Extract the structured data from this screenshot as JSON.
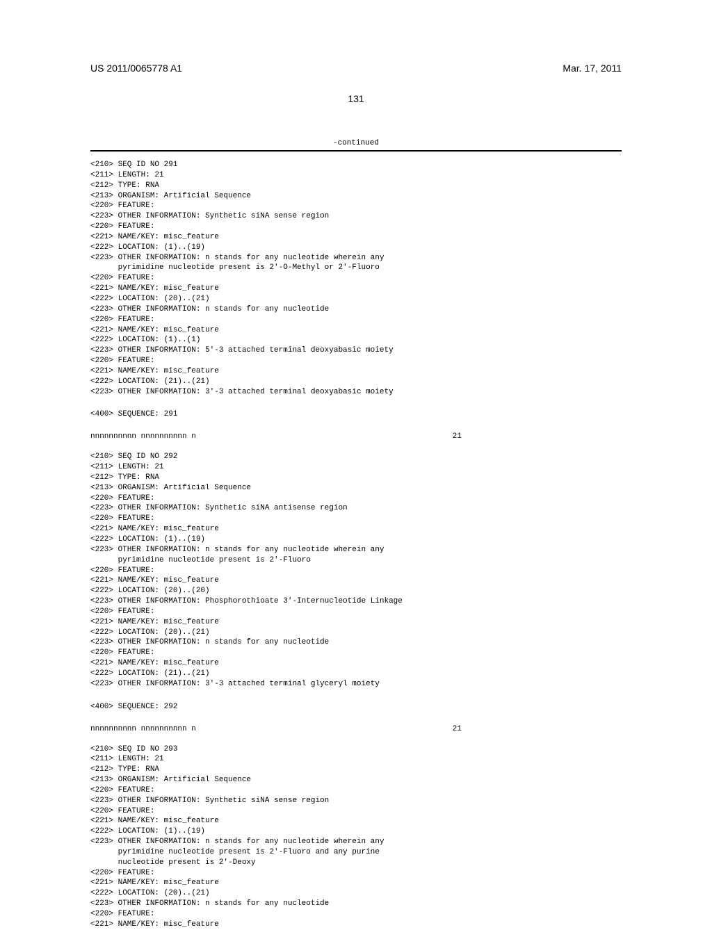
{
  "header": {
    "docNumber": "US 2011/0065778 A1",
    "date": "Mar. 17, 2011"
  },
  "pageNumber": "131",
  "continuedLabel": "-continued",
  "seq291": {
    "lines": [
      "<210> SEQ ID NO 291",
      "<211> LENGTH: 21",
      "<212> TYPE: RNA",
      "<213> ORGANISM: Artificial Sequence",
      "<220> FEATURE:",
      "<223> OTHER INFORMATION: Synthetic siNA sense region",
      "<220> FEATURE:",
      "<221> NAME/KEY: misc_feature",
      "<222> LOCATION: (1)..(19)",
      "<223> OTHER INFORMATION: n stands for any nucleotide wherein any",
      "      pyrimidine nucleotide present is 2'-O-Methyl or 2'-Fluoro",
      "<220> FEATURE:",
      "<221> NAME/KEY: misc_feature",
      "<222> LOCATION: (20)..(21)",
      "<223> OTHER INFORMATION: n stands for any nucleotide",
      "<220> FEATURE:",
      "<221> NAME/KEY: misc_feature",
      "<222> LOCATION: (1)..(1)",
      "<223> OTHER INFORMATION: 5'-3 attached terminal deoxyabasic moiety",
      "<220> FEATURE:",
      "<221> NAME/KEY: misc_feature",
      "<222> LOCATION: (21)..(21)",
      "<223> OTHER INFORMATION: 3'-3 attached terminal deoxyabasic moiety"
    ],
    "sequenceLabel": "<400> SEQUENCE: 291",
    "sequence": "nnnnnnnnnn nnnnnnnnnn n",
    "seqNumber": "21"
  },
  "seq292": {
    "lines": [
      "<210> SEQ ID NO 292",
      "<211> LENGTH: 21",
      "<212> TYPE: RNA",
      "<213> ORGANISM: Artificial Sequence",
      "<220> FEATURE:",
      "<223> OTHER INFORMATION: Synthetic siNA antisense region",
      "<220> FEATURE:",
      "<221> NAME/KEY: misc_feature",
      "<222> LOCATION: (1)..(19)",
      "<223> OTHER INFORMATION: n stands for any nucleotide wherein any",
      "      pyrimidine nucleotide present is 2'-Fluoro",
      "<220> FEATURE:",
      "<221> NAME/KEY: misc_feature",
      "<222> LOCATION: (20)..(20)",
      "<223> OTHER INFORMATION: Phosphorothioate 3'-Internucleotide Linkage",
      "<220> FEATURE:",
      "<221> NAME/KEY: misc_feature",
      "<222> LOCATION: (20)..(21)",
      "<223> OTHER INFORMATION: n stands for any nucleotide",
      "<220> FEATURE:",
      "<221> NAME/KEY: misc_feature",
      "<222> LOCATION: (21)..(21)",
      "<223> OTHER INFORMATION: 3'-3 attached terminal glyceryl moiety"
    ],
    "sequenceLabel": "<400> SEQUENCE: 292",
    "sequence": "nnnnnnnnnn nnnnnnnnnn n",
    "seqNumber": "21"
  },
  "seq293": {
    "lines": [
      "<210> SEQ ID NO 293",
      "<211> LENGTH: 21",
      "<212> TYPE: RNA",
      "<213> ORGANISM: Artificial Sequence",
      "<220> FEATURE:",
      "<223> OTHER INFORMATION: Synthetic siNA sense region",
      "<220> FEATURE:",
      "<221> NAME/KEY: misc_feature",
      "<222> LOCATION: (1)..(19)",
      "<223> OTHER INFORMATION: n stands for any nucleotide wherein any",
      "      pyrimidine nucleotide present is 2'-Fluoro and any purine",
      "      nucleotide present is 2'-Deoxy",
      "<220> FEATURE:",
      "<221> NAME/KEY: misc_feature",
      "<222> LOCATION: (20)..(21)",
      "<223> OTHER INFORMATION: n stands for any nucleotide",
      "<220> FEATURE:",
      "<221> NAME/KEY: misc_feature"
    ]
  }
}
